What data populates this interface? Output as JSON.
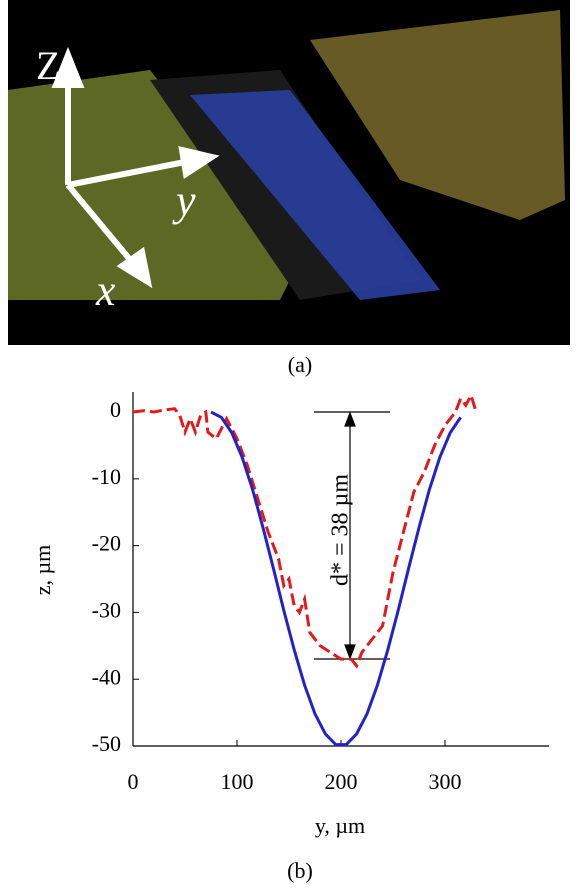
{
  "panel_a": {
    "caption": "(a)",
    "axis_labels": [
      "Z",
      "y",
      "x"
    ]
  },
  "chart_data": {
    "type": "line",
    "caption": "(b)",
    "xlabel": "y,  µm",
    "ylabel": "z,  µm",
    "annotation": "d* = 38 µm",
    "xlim": [
      0,
      400
    ],
    "xticks": [
      0,
      100,
      200,
      300
    ],
    "ylim": [
      -50,
      3
    ],
    "yticks": [
      0,
      -10,
      -20,
      -30,
      -40,
      -50
    ],
    "series": [
      {
        "color": "#e31a1c",
        "dashed": true,
        "x": [
          0,
          10,
          20,
          30,
          40,
          45,
          50,
          55,
          60,
          65,
          70,
          72,
          80,
          90,
          100,
          110,
          120,
          130,
          140,
          145,
          150,
          155,
          160,
          165,
          170,
          180,
          190,
          200,
          210,
          215,
          220,
          230,
          240,
          250,
          260,
          270,
          280,
          290,
          300,
          310,
          315,
          320,
          325,
          330
        ],
        "values": [
          0,
          0.2,
          0,
          0.3,
          0.5,
          -0.5,
          -3,
          -1,
          -3,
          -0.5,
          0,
          -3,
          -4,
          -1,
          -4,
          -8,
          -13,
          -18,
          -22,
          -26,
          -25,
          -29,
          -30,
          -28,
          -33,
          -35,
          -36,
          -37,
          -37,
          -38,
          -36,
          -34,
          -32,
          -24,
          -18,
          -12,
          -9,
          -5,
          -2,
          0,
          2,
          1,
          2.5,
          0
        ]
      },
      {
        "color": "#2222cc",
        "dashed": false,
        "x": [
          75,
          85,
          95,
          105,
          115,
          125,
          135,
          145,
          155,
          165,
          175,
          185,
          195,
          205,
          215,
          225,
          235,
          245,
          255,
          265,
          275,
          285,
          295,
          305,
          315
        ],
        "values": [
          0,
          -0.8,
          -3.1,
          -6.8,
          -11.6,
          -17.3,
          -23.4,
          -29.7,
          -35.6,
          -40.9,
          -45.2,
          -48.2,
          -49.8,
          -49.8,
          -48.2,
          -45.2,
          -40.9,
          -35.6,
          -29.7,
          -23.4,
          -17.3,
          -11.6,
          -6.8,
          -3.1,
          -0.8
        ]
      }
    ]
  }
}
